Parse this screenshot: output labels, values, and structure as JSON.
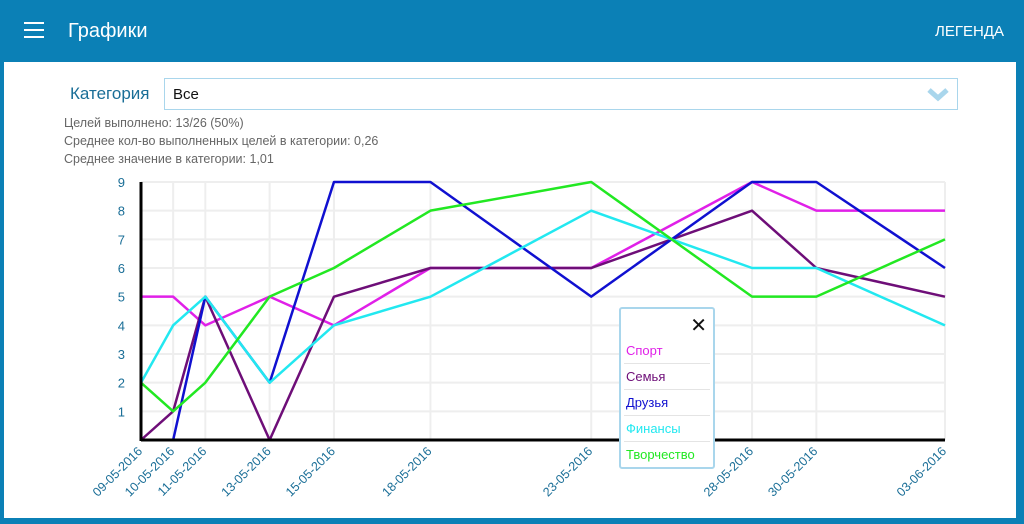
{
  "header": {
    "title": "Графики",
    "legend_button": "ЛЕГЕНДА",
    "menu_icon": "hamburger-icon"
  },
  "filter": {
    "label": "Категория",
    "selected": "Все"
  },
  "stats": [
    "Целей выполнено: 13/26 (50%)",
    "Среднее кол-во выполненных целей в категории: 0,26",
    "Среднее значение в категории: 1,01"
  ],
  "legend_popup": {
    "close": "✕",
    "items": [
      {
        "label": "Спорт",
        "color": "#e020e8"
      },
      {
        "label": "Семья",
        "color": "#6e0e78"
      },
      {
        "label": "Друзья",
        "color": "#1010d0"
      },
      {
        "label": "Финансы",
        "color": "#22e8f0"
      },
      {
        "label": "Творчество",
        "color": "#22e822"
      }
    ]
  },
  "chart_data": {
    "type": "line",
    "x": [
      "09-05-2016",
      "10-05-2016",
      "11-05-2016",
      "13-05-2016",
      "15-05-2016",
      "18-05-2016",
      "23-05-2016",
      "28-05-2016",
      "30-05-2016",
      "03-06-2016"
    ],
    "x_day_offsets": [
      0,
      1,
      2,
      4,
      6,
      9,
      14,
      19,
      21,
      25
    ],
    "yticks": [
      1,
      2,
      3,
      4,
      5,
      6,
      7,
      8,
      9
    ],
    "ylim": [
      0,
      9
    ],
    "grid": true,
    "series": [
      {
        "name": "Спорт",
        "color": "#e020e8",
        "values": [
          5,
          5,
          4,
          5,
          4,
          6,
          6,
          9,
          8,
          8
        ]
      },
      {
        "name": "Семья",
        "color": "#6e0e78",
        "values": [
          0,
          1,
          5,
          0,
          5,
          6,
          6,
          8,
          6,
          5
        ]
      },
      {
        "name": "Друзья",
        "color": "#1010d0",
        "values": [
          0,
          0,
          5,
          2,
          9,
          9,
          5,
          9,
          9,
          6
        ]
      },
      {
        "name": "Финансы",
        "color": "#22e8f0",
        "values": [
          2,
          4,
          5,
          2,
          4,
          5,
          8,
          6,
          6,
          4
        ]
      },
      {
        "name": "Творчество",
        "color": "#22e822",
        "values": [
          2,
          1,
          2,
          5,
          6,
          8,
          9,
          5,
          5,
          7
        ]
      }
    ]
  }
}
